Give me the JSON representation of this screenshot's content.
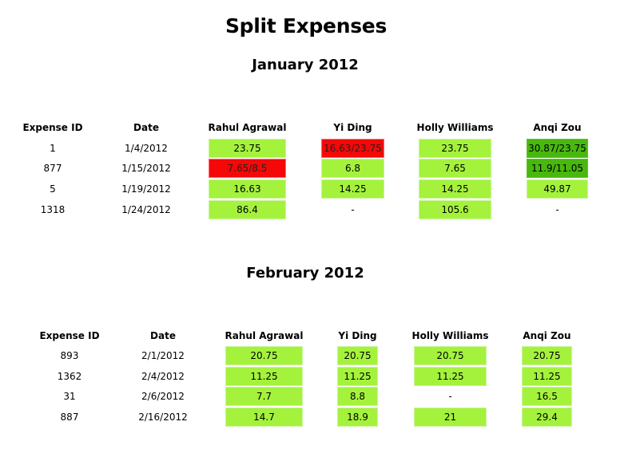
{
  "page": {
    "title": "Split Expenses"
  },
  "colors": {
    "light_green": "#a4f23c",
    "dark_green": "#48b80e",
    "red": "#f40808"
  },
  "months": [
    {
      "title": "January 2012",
      "headers": [
        "Expense ID",
        "Date",
        "Rahul Agrawal",
        "Yi Ding",
        "Holly Williams",
        "Anqi Zou"
      ],
      "rows": [
        {
          "id": "1",
          "date": "1/4/2012",
          "cells": [
            {
              "text": "23.75",
              "style": "lg"
            },
            {
              "text": "16.63/23.75",
              "style": "rd"
            },
            {
              "text": "23.75",
              "style": "lg"
            },
            {
              "text": "30.87/23.75",
              "style": "dg"
            }
          ]
        },
        {
          "id": "877",
          "date": "1/15/2012",
          "cells": [
            {
              "text": "7.65/8.5",
              "style": "rd"
            },
            {
              "text": "6.8",
              "style": "lg"
            },
            {
              "text": "7.65",
              "style": "lg"
            },
            {
              "text": "11.9/11.05",
              "style": "dg"
            }
          ]
        },
        {
          "id": "5",
          "date": "1/19/2012",
          "cells": [
            {
              "text": "16.63",
              "style": "lg"
            },
            {
              "text": "14.25",
              "style": "lg"
            },
            {
              "text": "14.25",
              "style": "lg"
            },
            {
              "text": "49.87",
              "style": "lg"
            }
          ]
        },
        {
          "id": "1318",
          "date": "1/24/2012",
          "cells": [
            {
              "text": "86.4",
              "style": "lg"
            },
            {
              "text": "-",
              "style": "plain"
            },
            {
              "text": "105.6",
              "style": "lg"
            },
            {
              "text": "-",
              "style": "plain"
            }
          ]
        }
      ]
    },
    {
      "title": "February 2012",
      "headers": [
        "Expense ID",
        "Date",
        "Rahul Agrawal",
        "Yi Ding",
        "Holly Williams",
        "Anqi Zou"
      ],
      "rows": [
        {
          "id": "893",
          "date": "2/1/2012",
          "cells": [
            {
              "text": "20.75",
              "style": "lg"
            },
            {
              "text": "20.75",
              "style": "lg"
            },
            {
              "text": "20.75",
              "style": "lg"
            },
            {
              "text": "20.75",
              "style": "lg"
            }
          ]
        },
        {
          "id": "1362",
          "date": "2/4/2012",
          "cells": [
            {
              "text": "11.25",
              "style": "lg"
            },
            {
              "text": "11.25",
              "style": "lg"
            },
            {
              "text": "11.25",
              "style": "lg"
            },
            {
              "text": "11.25",
              "style": "lg"
            }
          ]
        },
        {
          "id": "31",
          "date": "2/6/2012",
          "cells": [
            {
              "text": "7.7",
              "style": "lg"
            },
            {
              "text": "8.8",
              "style": "lg"
            },
            {
              "text": "-",
              "style": "plain"
            },
            {
              "text": "16.5",
              "style": "lg"
            }
          ]
        },
        {
          "id": "887",
          "date": "2/16/2012",
          "cells": [
            {
              "text": "14.7",
              "style": "lg"
            },
            {
              "text": "18.9",
              "style": "lg"
            },
            {
              "text": "21",
              "style": "lg"
            },
            {
              "text": "29.4",
              "style": "lg"
            }
          ]
        }
      ]
    }
  ]
}
